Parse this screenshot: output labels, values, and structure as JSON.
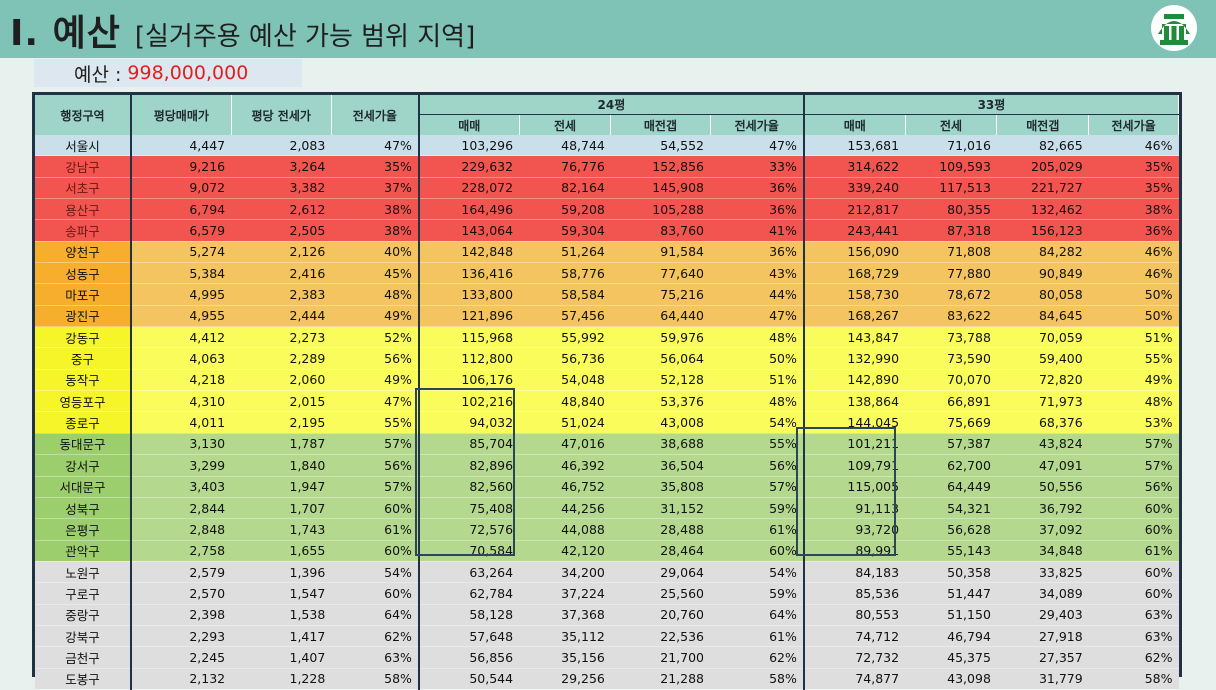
{
  "title": {
    "main": "I. 예산",
    "sub": "[실거주용 예산 가능 범위 지역]"
  },
  "budget": {
    "label": "예산 : ",
    "value": "998,000,000"
  },
  "logo": {
    "icon": "building-logo-icon"
  },
  "colors": {
    "header": "#7fc3b6",
    "top_tier": "#f2544f",
    "orange_tier": "#f3c45f",
    "yellow_tier": "#fafc5c",
    "green_tier": "#b4d98e",
    "gray_tier": "#dedede"
  },
  "table": {
    "headers": {
      "region": "행정구역",
      "price_per_pyeong": "평당매매가",
      "jeonse_per_pyeong": "평당 전세가",
      "jeonse_ratio": "전세가율",
      "group_24": "24평",
      "group_33": "33평",
      "sub": [
        "매매",
        "전세",
        "매전갭",
        "전세가율"
      ]
    },
    "rows": [
      {
        "tier": "seoul",
        "cells": [
          "서울시",
          "4,447",
          "2,083",
          "47%",
          "103,296",
          "48,744",
          "54,552",
          "47%",
          "153,681",
          "71,016",
          "82,665",
          "46%"
        ]
      },
      {
        "tier": "top",
        "cells": [
          "강남구",
          "9,216",
          "3,264",
          "35%",
          "229,632",
          "76,776",
          "152,856",
          "33%",
          "314,622",
          "109,593",
          "205,029",
          "35%"
        ]
      },
      {
        "tier": "top",
        "cells": [
          "서초구",
          "9,072",
          "3,382",
          "37%",
          "228,072",
          "82,164",
          "145,908",
          "36%",
          "339,240",
          "117,513",
          "221,727",
          "35%"
        ]
      },
      {
        "tier": "top",
        "cells": [
          "용산구",
          "6,794",
          "2,612",
          "38%",
          "164,496",
          "59,208",
          "105,288",
          "36%",
          "212,817",
          "80,355",
          "132,462",
          "38%"
        ]
      },
      {
        "tier": "top",
        "cells": [
          "송파구",
          "6,579",
          "2,505",
          "38%",
          "143,064",
          "59,304",
          "83,760",
          "41%",
          "243,441",
          "87,318",
          "156,123",
          "36%"
        ]
      },
      {
        "tier": "orange",
        "cells": [
          "양천구",
          "5,274",
          "2,126",
          "40%",
          "142,848",
          "51,264",
          "91,584",
          "36%",
          "156,090",
          "71,808",
          "84,282",
          "46%"
        ]
      },
      {
        "tier": "orange",
        "cells": [
          "성동구",
          "5,384",
          "2,416",
          "45%",
          "136,416",
          "58,776",
          "77,640",
          "43%",
          "168,729",
          "77,880",
          "90,849",
          "46%"
        ]
      },
      {
        "tier": "orange",
        "cells": [
          "마포구",
          "4,995",
          "2,383",
          "48%",
          "133,800",
          "58,584",
          "75,216",
          "44%",
          "158,730",
          "78,672",
          "80,058",
          "50%"
        ]
      },
      {
        "tier": "orange",
        "cells": [
          "광진구",
          "4,955",
          "2,444",
          "49%",
          "121,896",
          "57,456",
          "64,440",
          "47%",
          "168,267",
          "83,622",
          "84,645",
          "50%"
        ]
      },
      {
        "tier": "yellow",
        "cells": [
          "강동구",
          "4,412",
          "2,273",
          "52%",
          "115,968",
          "55,992",
          "59,976",
          "48%",
          "143,847",
          "73,788",
          "70,059",
          "51%"
        ]
      },
      {
        "tier": "yellow",
        "cells": [
          "중구",
          "4,063",
          "2,289",
          "56%",
          "112,800",
          "56,736",
          "56,064",
          "50%",
          "132,990",
          "73,590",
          "59,400",
          "55%"
        ]
      },
      {
        "tier": "yellow",
        "cells": [
          "동작구",
          "4,218",
          "2,060",
          "49%",
          "106,176",
          "54,048",
          "52,128",
          "51%",
          "142,890",
          "70,070",
          "72,820",
          "49%"
        ]
      },
      {
        "tier": "yellow",
        "cells": [
          "영등포구",
          "4,310",
          "2,015",
          "47%",
          "102,216",
          "48,840",
          "53,376",
          "48%",
          "138,864",
          "66,891",
          "71,973",
          "48%"
        ]
      },
      {
        "tier": "yellow",
        "cells": [
          "종로구",
          "4,011",
          "2,195",
          "55%",
          "94,032",
          "51,024",
          "43,008",
          "54%",
          "144,045",
          "75,669",
          "68,376",
          "53%"
        ]
      },
      {
        "tier": "green",
        "cells": [
          "동대문구",
          "3,130",
          "1,787",
          "57%",
          "85,704",
          "47,016",
          "38,688",
          "55%",
          "101,211",
          "57,387",
          "43,824",
          "57%"
        ]
      },
      {
        "tier": "green",
        "cells": [
          "강서구",
          "3,299",
          "1,840",
          "56%",
          "82,896",
          "46,392",
          "36,504",
          "56%",
          "109,791",
          "62,700",
          "47,091",
          "57%"
        ]
      },
      {
        "tier": "green",
        "cells": [
          "서대문구",
          "3,403",
          "1,947",
          "57%",
          "82,560",
          "46,752",
          "35,808",
          "57%",
          "115,005",
          "64,449",
          "50,556",
          "56%"
        ]
      },
      {
        "tier": "green",
        "cells": [
          "성북구",
          "2,844",
          "1,707",
          "60%",
          "75,408",
          "44,256",
          "31,152",
          "59%",
          "91,113",
          "54,321",
          "36,792",
          "60%"
        ]
      },
      {
        "tier": "green",
        "cells": [
          "은평구",
          "2,848",
          "1,743",
          "61%",
          "72,576",
          "44,088",
          "28,488",
          "61%",
          "93,720",
          "56,628",
          "37,092",
          "60%"
        ]
      },
      {
        "tier": "green",
        "cells": [
          "관악구",
          "2,758",
          "1,655",
          "60%",
          "70,584",
          "42,120",
          "28,464",
          "60%",
          "89,991",
          "55,143",
          "34,848",
          "61%"
        ]
      },
      {
        "tier": "gray",
        "cells": [
          "노원구",
          "2,579",
          "1,396",
          "54%",
          "63,264",
          "34,200",
          "29,064",
          "54%",
          "84,183",
          "50,358",
          "33,825",
          "60%"
        ]
      },
      {
        "tier": "gray",
        "cells": [
          "구로구",
          "2,570",
          "1,547",
          "60%",
          "62,784",
          "37,224",
          "25,560",
          "59%",
          "85,536",
          "51,447",
          "34,089",
          "60%"
        ]
      },
      {
        "tier": "gray",
        "cells": [
          "중랑구",
          "2,398",
          "1,538",
          "64%",
          "58,128",
          "37,368",
          "20,760",
          "64%",
          "80,553",
          "51,150",
          "29,403",
          "63%"
        ]
      },
      {
        "tier": "gray",
        "cells": [
          "강북구",
          "2,293",
          "1,417",
          "62%",
          "57,648",
          "35,112",
          "22,536",
          "61%",
          "74,712",
          "46,794",
          "27,918",
          "63%"
        ]
      },
      {
        "tier": "gray",
        "cells": [
          "금천구",
          "2,245",
          "1,407",
          "63%",
          "56,856",
          "35,156",
          "21,700",
          "62%",
          "72,732",
          "45,375",
          "27,357",
          "62%"
        ]
      },
      {
        "tier": "gray",
        "cells": [
          "도봉구",
          "2,132",
          "1,228",
          "58%",
          "50,544",
          "29,256",
          "21,288",
          "58%",
          "74,877",
          "43,098",
          "31,779",
          "58%"
        ]
      }
    ]
  }
}
